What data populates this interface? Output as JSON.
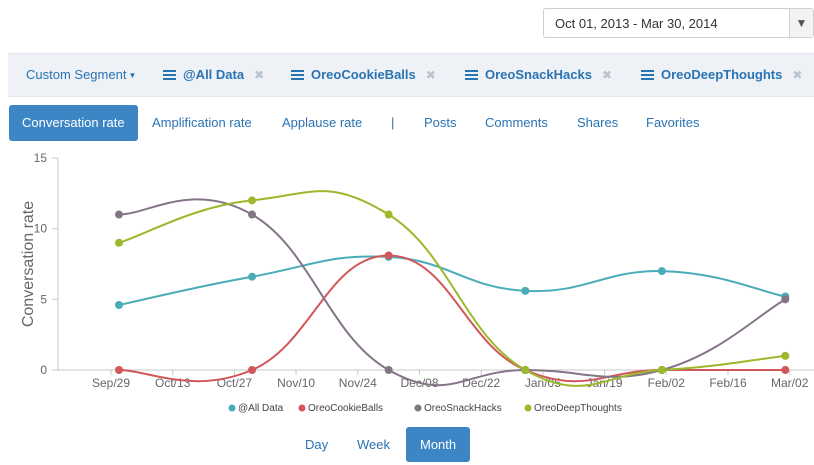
{
  "date_range": {
    "value": "Oct 01, 2013 - Mar 30, 2014",
    "caret": "▼"
  },
  "segments": [
    {
      "label": "Custom Segment",
      "caret": "▼"
    },
    {
      "label": "@All Data",
      "remove": "✖"
    },
    {
      "label": "OreoCookieBalls",
      "remove": "✖"
    },
    {
      "label": "OreoSnackHacks",
      "remove": "✖"
    },
    {
      "label": "OreoDeepThoughts",
      "remove": "✖"
    }
  ],
  "metric_tabs": [
    "Conversation rate",
    "Amplification rate",
    "Applause rate",
    "|",
    "Posts",
    "Comments",
    "Shares",
    "Favorites"
  ],
  "active_metric": "Conversation rate",
  "granularity": [
    "Day",
    "Week",
    "Month"
  ],
  "active_granularity": "Month",
  "chart_data": {
    "type": "line",
    "ylabel": "Conversation rate",
    "ylim": [
      0,
      15
    ],
    "yticks": [
      0,
      5,
      10,
      15
    ],
    "xticks": [
      "Sep/29",
      "Oct/13",
      "Oct/27",
      "Nov/10",
      "Nov/24",
      "Dec/08",
      "Dec/22",
      "Jan/05",
      "Jan/19",
      "Feb/02",
      "Feb/16",
      "Mar/02"
    ],
    "x": [
      "Sep/29",
      "Oct/31",
      "Dec/01",
      "Jan/01",
      "Feb/01",
      "Mar/01"
    ],
    "series": [
      {
        "name": "@All Data",
        "color": "#4aacb8",
        "values": [
          4.6,
          6.6,
          8.0,
          5.6,
          7.0,
          5.2
        ]
      },
      {
        "name": "OreoCookieBalls",
        "color": "#d0585a",
        "values": [
          0,
          0,
          8.1,
          0,
          0,
          0
        ]
      },
      {
        "name": "OreoSnackHacks",
        "color": "#857388",
        "values": [
          11.0,
          11.0,
          0,
          0,
          0,
          5.0
        ]
      },
      {
        "name": "OreoDeepThoughts",
        "color": "#9cb82b",
        "values": [
          9.0,
          12.0,
          11.0,
          0,
          0,
          1.0
        ]
      }
    ],
    "legend_position": "bottom",
    "grid": false
  }
}
